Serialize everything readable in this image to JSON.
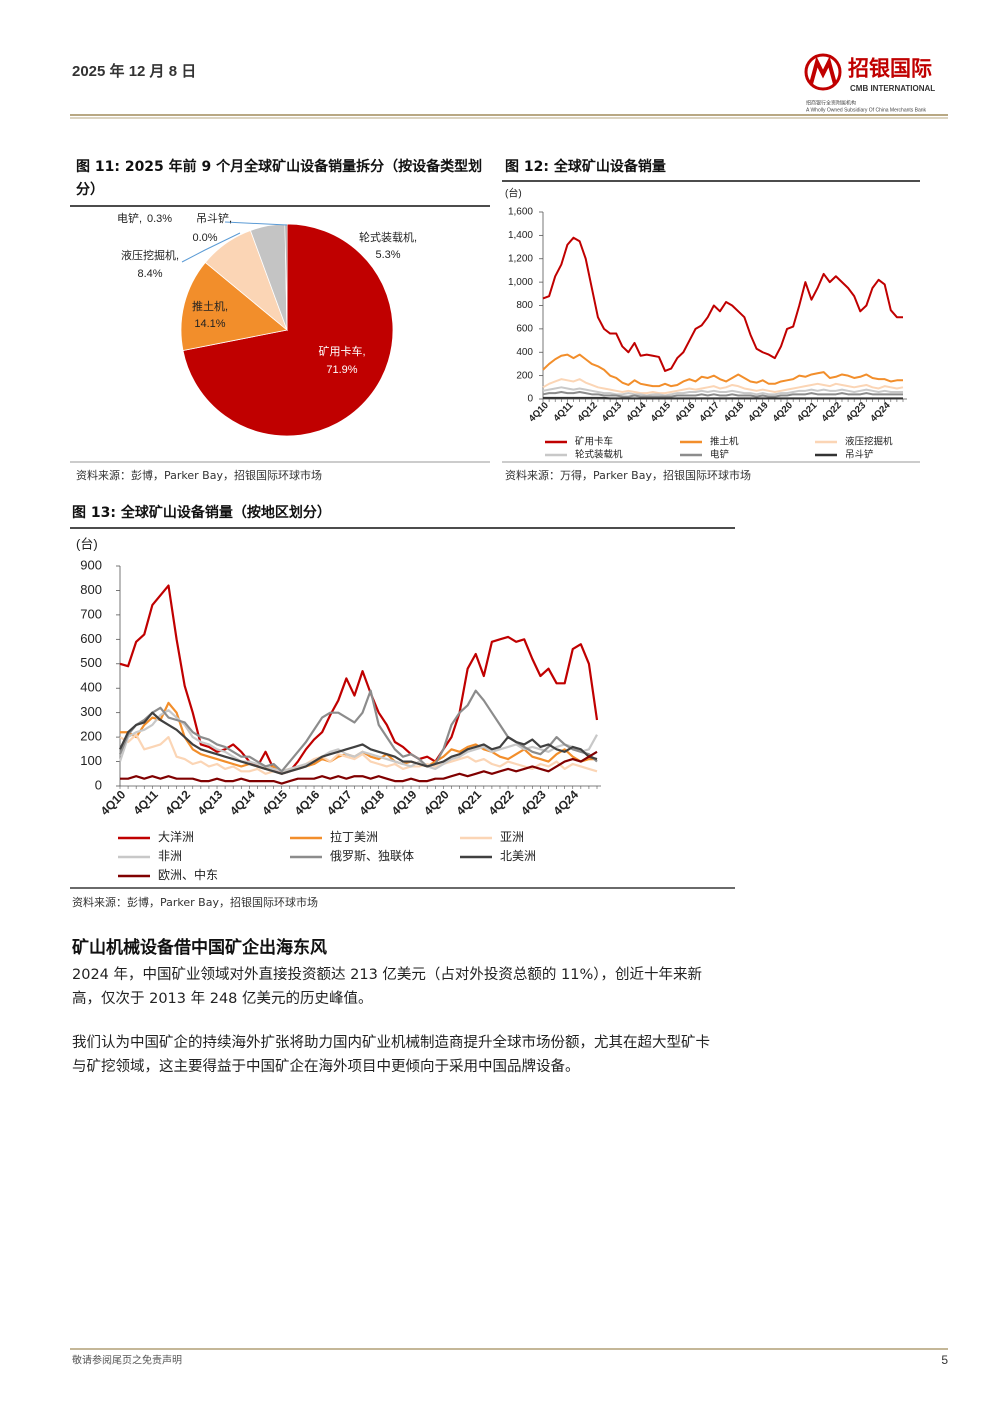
{
  "header": {
    "date": "2025 年 12 月 8 日",
    "logo_cn": "招银国际",
    "logo_en": "CMB INTERNATIONAL",
    "logo_tagline_cn": "招商银行全资附属机构",
    "logo_tagline_en": "A Wholly Owned Subsidiary Of China Merchants Bank"
  },
  "chart_data": [
    {
      "type": "pie",
      "title": "图 11: 2025 年前 9 个月全球矿山设备销量拆分（按设备类型划分）",
      "categories": [
        "矿用卡车,",
        "推土机,",
        "液压挖掘机,",
        "轮式装载机,",
        "电铲,",
        "吊斗铲,"
      ],
      "values": [
        71.9,
        14.1,
        8.4,
        5.3,
        0.3,
        0.0
      ],
      "value_labels": [
        "71.9%",
        "14.1%",
        "8.4%",
        "5.3%",
        "0.3%",
        "0.0%"
      ],
      "colors": [
        "#c00000",
        "#f28e2b",
        "#fbd5b5",
        "#c4c4c4",
        "#8c8c8c",
        "#333333"
      ],
      "source": "资料来源：彭博，Parker Bay，招银国际环球市场"
    },
    {
      "type": "line",
      "title": "图 12: 全球矿山设备销量",
      "y_unit": "(台)",
      "categories": [
        "4Q10",
        null,
        null,
        null,
        "4Q11",
        null,
        null,
        null,
        "4Q12",
        null,
        null,
        null,
        "4Q13",
        null,
        null,
        null,
        "4Q14",
        null,
        null,
        null,
        "4Q15",
        null,
        null,
        null,
        "4Q16",
        null,
        null,
        null,
        "4Q17",
        null,
        null,
        null,
        "4Q18",
        null,
        null,
        null,
        "4Q19",
        null,
        null,
        null,
        "4Q20",
        null,
        null,
        null,
        "4Q21",
        null,
        null,
        null,
        "4Q22",
        null,
        null,
        null,
        "4Q23",
        null,
        null,
        null,
        "4Q24",
        null,
        null,
        null
      ],
      "ylim": [
        0,
        1600
      ],
      "yticks": [
        0,
        200,
        400,
        600,
        800,
        {
          "value": 1000,
          "label": "1,000"
        },
        {
          "value": 1200,
          "label": "1,200"
        },
        {
          "value": 1400,
          "label": "1,400"
        },
        {
          "value": 1600,
          "label": "1,600"
        }
      ],
      "series": [
        {
          "name": "矿用卡车",
          "color": "#c00000",
          "values": [
            860,
            880,
            1050,
            1150,
            1320,
            1380,
            1350,
            1200,
            950,
            700,
            600,
            560,
            560,
            450,
            400,
            480,
            370,
            380,
            370,
            360,
            240,
            260,
            350,
            400,
            500,
            600,
            630,
            700,
            800,
            750,
            830,
            800,
            750,
            700,
            550,
            430,
            400,
            380,
            350,
            450,
            600,
            620,
            800,
            1000,
            850,
            950,
            1070,
            1000,
            1050,
            1000,
            950,
            880,
            750,
            800,
            950,
            1020,
            980,
            760,
            700,
            700
          ]
        },
        {
          "name": "推土机",
          "color": "#f28e2b",
          "values": [
            250,
            300,
            340,
            370,
            380,
            350,
            380,
            340,
            300,
            280,
            250,
            200,
            180,
            140,
            120,
            160,
            130,
            120,
            110,
            110,
            130,
            110,
            120,
            150,
            170,
            150,
            190,
            180,
            200,
            170,
            150,
            180,
            210,
            180,
            150,
            140,
            160,
            130,
            130,
            150,
            160,
            170,
            200,
            190,
            210,
            220,
            230,
            180,
            190,
            210,
            200,
            180,
            190,
            210,
            180,
            170,
            170,
            150,
            160,
            160
          ]
        },
        {
          "name": "液压挖掘机",
          "color": "#fbd5b5",
          "values": [
            100,
            130,
            150,
            170,
            160,
            150,
            170,
            140,
            120,
            100,
            90,
            80,
            70,
            60,
            70,
            60,
            50,
            50,
            60,
            50,
            50,
            60,
            70,
            80,
            90,
            80,
            90,
            100,
            110,
            90,
            100,
            120,
            110,
            90,
            80,
            70,
            80,
            70,
            60,
            70,
            80,
            90,
            100,
            110,
            120,
            130,
            120,
            110,
            130,
            120,
            110,
            100,
            110,
            120,
            100,
            90,
            110,
            100,
            90,
            100
          ]
        },
        {
          "name": "轮式装载机",
          "color": "#c8c8c8",
          "values": [
            70,
            80,
            90,
            100,
            90,
            80,
            90,
            80,
            70,
            60,
            50,
            50,
            40,
            40,
            50,
            40,
            40,
            30,
            40,
            40,
            30,
            40,
            50,
            50,
            60,
            60,
            70,
            60,
            70,
            60,
            60,
            70,
            60,
            50,
            50,
            40,
            50,
            40,
            40,
            50,
            50,
            60,
            70,
            70,
            80,
            70,
            80,
            70,
            70,
            80,
            70,
            60,
            70,
            80,
            70,
            60,
            70,
            60,
            60,
            60
          ]
        },
        {
          "name": "电铲",
          "color": "#8c8c8c",
          "values": [
            40,
            50,
            50,
            60,
            50,
            50,
            60,
            50,
            40,
            40,
            30,
            30,
            30,
            20,
            20,
            30,
            20,
            20,
            20,
            20,
            20,
            20,
            30,
            30,
            30,
            30,
            40,
            30,
            40,
            30,
            30,
            40,
            30,
            30,
            30,
            20,
            30,
            20,
            20,
            30,
            30,
            40,
            40,
            40,
            50,
            40,
            40,
            40,
            40,
            50,
            40,
            40,
            40,
            50,
            40,
            40,
            40,
            40,
            40,
            40
          ]
        },
        {
          "name": "吊斗铲",
          "color": "#333333",
          "values": [
            10,
            10,
            10,
            10,
            10,
            10,
            10,
            10,
            10,
            10,
            10,
            5,
            5,
            5,
            5,
            5,
            5,
            5,
            5,
            5,
            5,
            5,
            5,
            5,
            5,
            5,
            5,
            5,
            5,
            5,
            5,
            5,
            5,
            5,
            5,
            5,
            5,
            5,
            5,
            5,
            5,
            5,
            5,
            5,
            5,
            5,
            5,
            5,
            5,
            5,
            5,
            5,
            5,
            5,
            5,
            5,
            5,
            5,
            5,
            5
          ]
        }
      ],
      "source": "资料来源：万得，Parker Bay，招银国际环球市场"
    },
    {
      "type": "line",
      "title": "图 13: 全球矿山设备销量（按地区划分）",
      "y_unit": "(台)",
      "categories": [
        "4Q10",
        null,
        null,
        null,
        "4Q11",
        null,
        null,
        null,
        "4Q12",
        null,
        null,
        null,
        "4Q13",
        null,
        null,
        null,
        "4Q14",
        null,
        null,
        null,
        "4Q15",
        null,
        null,
        null,
        "4Q16",
        null,
        null,
        null,
        "4Q17",
        null,
        null,
        null,
        "4Q18",
        null,
        null,
        null,
        "4Q19",
        null,
        null,
        null,
        "4Q20",
        null,
        null,
        null,
        "4Q21",
        null,
        null,
        null,
        "4Q22",
        null,
        null,
        null,
        "4Q23",
        null,
        null,
        null,
        "4Q24",
        null,
        null,
        null
      ],
      "ylim": [
        0,
        900
      ],
      "yticks": [
        0,
        100,
        200,
        300,
        400,
        500,
        600,
        700,
        800,
        900
      ],
      "series": [
        {
          "name": "大洋洲",
          "color": "#c00000",
          "values": [
            500,
            490,
            590,
            620,
            740,
            780,
            820,
            600,
            410,
            300,
            170,
            160,
            140,
            150,
            170,
            140,
            100,
            80,
            140,
            70,
            50,
            60,
            100,
            150,
            190,
            220,
            290,
            350,
            440,
            370,
            470,
            380,
            300,
            250,
            180,
            160,
            130,
            110,
            120,
            100,
            150,
            200,
            300,
            480,
            540,
            450,
            590,
            600,
            610,
            590,
            600,
            520,
            450,
            480,
            420,
            420,
            560,
            580,
            500,
            270
          ]
        },
        {
          "name": "拉丁美洲",
          "color": "#f28e2b",
          "values": [
            220,
            220,
            200,
            250,
            280,
            270,
            340,
            300,
            200,
            150,
            130,
            120,
            110,
            100,
            90,
            80,
            90,
            80,
            70,
            80,
            60,
            70,
            70,
            80,
            90,
            110,
            100,
            120,
            130,
            120,
            140,
            120,
            110,
            130,
            100,
            90,
            100,
            90,
            80,
            100,
            120,
            150,
            140,
            160,
            170,
            150,
            140,
            120,
            110,
            130,
            150,
            120,
            110,
            100,
            130,
            150,
            120,
            100,
            110,
            110
          ]
        },
        {
          "name": "亚洲",
          "color": "#fbd5b5",
          "values": [
            200,
            180,
            210,
            150,
            160,
            170,
            200,
            120,
            110,
            90,
            100,
            80,
            90,
            70,
            80,
            60,
            60,
            70,
            50,
            60,
            50,
            60,
            70,
            90,
            110,
            120,
            100,
            130,
            120,
            110,
            130,
            100,
            90,
            80,
            90,
            70,
            80,
            80,
            90,
            80,
            90,
            100,
            110,
            120,
            100,
            110,
            90,
            80,
            100,
            90,
            80,
            70,
            90,
            80,
            100,
            70,
            90,
            80,
            70,
            60
          ]
        },
        {
          "name": "非洲",
          "color": "#c8c8c8",
          "values": [
            100,
            200,
            220,
            230,
            250,
            290,
            310,
            280,
            250,
            200,
            180,
            170,
            150,
            140,
            120,
            100,
            100,
            90,
            80,
            70,
            60,
            70,
            80,
            90,
            100,
            120,
            140,
            150,
            130,
            120,
            140,
            130,
            120,
            110,
            100,
            90,
            80,
            100,
            80,
            70,
            90,
            110,
            120,
            140,
            150,
            160,
            140,
            150,
            160,
            170,
            150,
            160,
            150,
            140,
            160,
            170,
            160,
            140,
            150,
            210
          ]
        },
        {
          "name": "俄罗斯、独联体",
          "color": "#8c8c8c",
          "values": [
            130,
            210,
            250,
            270,
            300,
            320,
            280,
            270,
            260,
            220,
            200,
            190,
            170,
            160,
            140,
            120,
            120,
            100,
            80,
            90,
            60,
            100,
            140,
            180,
            230,
            280,
            300,
            300,
            280,
            260,
            300,
            390,
            250,
            200,
            150,
            120,
            130,
            110,
            80,
            90,
            150,
            250,
            300,
            330,
            390,
            350,
            300,
            250,
            200,
            180,
            160,
            140,
            130,
            160,
            200,
            170,
            150,
            140,
            130,
            100
          ]
        },
        {
          "name": "北美洲",
          "color": "#404040",
          "values": [
            150,
            220,
            250,
            260,
            300,
            270,
            250,
            230,
            200,
            170,
            150,
            140,
            130,
            120,
            110,
            100,
            90,
            80,
            70,
            60,
            50,
            60,
            70,
            80,
            100,
            120,
            130,
            140,
            150,
            160,
            170,
            150,
            140,
            130,
            120,
            100,
            100,
            90,
            80,
            90,
            100,
            120,
            130,
            150,
            160,
            170,
            150,
            160,
            200,
            180,
            170,
            190,
            160,
            170,
            150,
            140,
            160,
            150,
            120,
            110
          ]
        },
        {
          "name": "欧洲、中东",
          "color": "#800000",
          "values": [
            30,
            30,
            40,
            30,
            40,
            30,
            40,
            30,
            30,
            30,
            20,
            20,
            30,
            20,
            20,
            30,
            20,
            20,
            20,
            20,
            10,
            20,
            30,
            30,
            30,
            40,
            30,
            40,
            30,
            40,
            40,
            30,
            40,
            30,
            20,
            20,
            30,
            20,
            20,
            30,
            30,
            40,
            50,
            40,
            50,
            60,
            50,
            60,
            70,
            60,
            70,
            80,
            70,
            60,
            80,
            100,
            110,
            100,
            120,
            140
          ]
        }
      ],
      "source": "资料来源：彭博，Parker Bay，招银国际环球市场"
    }
  ],
  "section": {
    "heading": "矿山机械设备借中国矿企出海东风",
    "paragraphs": [
      "2024 年，中国矿业领域对外直接投资额达 213 亿美元（占对外投资总额的 11%），创近十年来新高，仅次于 2013 年 248 亿美元的历史峰值。",
      "我们认为中国矿企的持续海外扩张将助力国内矿业机械制造商提升全球市场份额，尤其在超大型矿卡与矿挖领域，这主要得益于中国矿企在海外项目中更倾向于采用中国品牌设备。"
    ]
  },
  "footer": {
    "disclaimer": "敬请参阅尾页之免责声明",
    "page": "5"
  }
}
